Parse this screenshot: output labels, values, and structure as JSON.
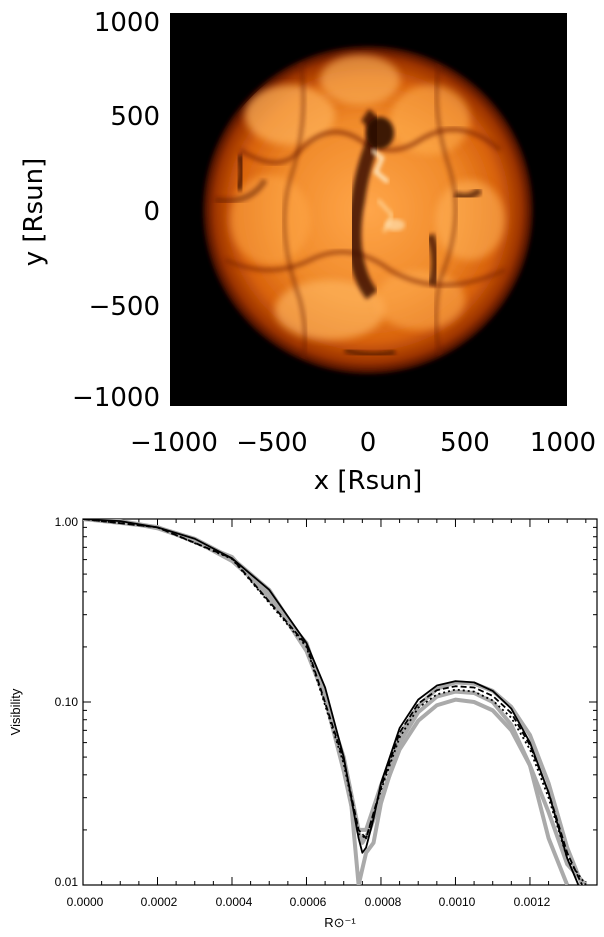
{
  "chart_data": [
    {
      "type": "heatmap",
      "xlabel": "x [Rsun]",
      "ylabel": "y [Rsun]",
      "xlim": [
        -1000,
        1000
      ],
      "ylim": [
        -1000,
        1000
      ],
      "xticks": [
        "−1000",
        "−500",
        "0",
        "500",
        "1000"
      ],
      "yticks": [
        "1000",
        "500",
        "0",
        "−500",
        "−1000"
      ],
      "colors": {
        "background": "#000000",
        "disk_bright": "#ffb347",
        "disk_mid": "#e06a10",
        "disk_dark": "#5a1500",
        "highlight": "#fff1d0"
      },
      "disk_radius": 830
    },
    {
      "type": "line",
      "xlabel": "R⊙⁻¹",
      "ylabel": "Visibility",
      "xlim": [
        0.0,
        0.00138
      ],
      "ylim": [
        0.01,
        1.0
      ],
      "yscale": "log",
      "xticks": [
        "0.0000",
        "0.0002",
        "0.0004",
        "0.0006",
        "0.0008",
        "0.0010",
        "0.0012"
      ],
      "yticks": [
        "1.00",
        "0.10",
        "0.01"
      ],
      "series": [
        {
          "color": "#aaaaaa",
          "dash": "",
          "x": [
            0.0,
            0.0001,
            0.0002,
            0.0003,
            0.0004,
            0.0005,
            0.0006,
            0.00065,
            0.0007,
            0.00072,
            0.00074,
            0.00076,
            0.00078,
            0.0008,
            0.00085,
            0.0009,
            0.00095,
            0.001,
            0.00105,
            0.0011,
            0.00115,
            0.0012,
            0.00125,
            0.0013
          ],
          "y": [
            1.0,
            0.975,
            0.9,
            0.78,
            0.61,
            0.41,
            0.2,
            0.11,
            0.045,
            0.028,
            0.01,
            0.015,
            0.017,
            0.028,
            0.06,
            0.088,
            0.107,
            0.114,
            0.112,
            0.1,
            0.075,
            0.045,
            0.018,
            0.01
          ]
        },
        {
          "color": "#aaaaaa",
          "dash": "",
          "x": [
            0.0,
            0.0001,
            0.0002,
            0.0003,
            0.0004,
            0.0005,
            0.0006,
            0.00065,
            0.0007,
            0.00073,
            0.00075,
            0.00077,
            0.0008,
            0.00085,
            0.0009,
            0.00095,
            0.001,
            0.00105,
            0.0011,
            0.00115,
            0.0012,
            0.00125,
            0.0013,
            0.00135
          ],
          "y": [
            1.0,
            0.972,
            0.89,
            0.76,
            0.59,
            0.39,
            0.19,
            0.105,
            0.042,
            0.022,
            0.017,
            0.02,
            0.03,
            0.055,
            0.079,
            0.096,
            0.103,
            0.1,
            0.09,
            0.07,
            0.045,
            0.025,
            0.013,
            0.01
          ]
        },
        {
          "color": "#aaaaaa",
          "dash": "",
          "x": [
            0.0,
            0.0002,
            0.0004,
            0.0006,
            0.0007,
            0.00074,
            0.00076,
            0.0008,
            0.00085,
            0.0009,
            0.00095,
            0.001,
            0.00105,
            0.0011,
            0.00115,
            0.0012,
            0.00125,
            0.0013,
            0.00134
          ],
          "y": [
            1.0,
            0.905,
            0.62,
            0.21,
            0.05,
            0.02,
            0.02,
            0.035,
            0.066,
            0.095,
            0.118,
            0.128,
            0.126,
            0.115,
            0.094,
            0.066,
            0.036,
            0.016,
            0.01
          ]
        },
        {
          "color": "#000000",
          "dash": "",
          "x": [
            0.0,
            0.0001,
            0.0002,
            0.0003,
            0.0004,
            0.0005,
            0.0006,
            0.00065,
            0.0007,
            0.00072,
            0.00074,
            0.00075,
            0.00076,
            0.00078,
            0.0008,
            0.00085,
            0.0009,
            0.00095,
            0.001,
            0.00105,
            0.0011,
            0.00115,
            0.0012,
            0.00125,
            0.0013,
            0.00133
          ],
          "y": [
            1.0,
            0.974,
            0.9,
            0.78,
            0.61,
            0.41,
            0.21,
            0.12,
            0.05,
            0.03,
            0.018,
            0.015,
            0.016,
            0.023,
            0.036,
            0.072,
            0.103,
            0.123,
            0.13,
            0.128,
            0.115,
            0.092,
            0.06,
            0.032,
            0.014,
            0.01
          ]
        },
        {
          "color": "#000000",
          "dash": "6 3",
          "x": [
            0.0,
            0.0002,
            0.0004,
            0.0006,
            0.0007,
            0.00074,
            0.00076,
            0.0008,
            0.00085,
            0.0009,
            0.00095,
            0.001,
            0.00105,
            0.0011,
            0.00115,
            0.0012,
            0.00125,
            0.0013,
            0.00134
          ],
          "y": [
            1.0,
            0.9,
            0.61,
            0.205,
            0.048,
            0.02,
            0.018,
            0.034,
            0.068,
            0.098,
            0.116,
            0.122,
            0.12,
            0.108,
            0.087,
            0.058,
            0.032,
            0.015,
            0.01
          ]
        },
        {
          "color": "#000000",
          "dash": "2 3",
          "x": [
            0.0,
            0.0002,
            0.0004,
            0.0006,
            0.0007,
            0.00074,
            0.00076,
            0.0008,
            0.00085,
            0.0009,
            0.00095,
            0.001,
            0.00105,
            0.0011,
            0.00115,
            0.0012,
            0.00125,
            0.0013,
            0.00135
          ],
          "y": [
            1.0,
            0.9,
            0.605,
            0.2,
            0.046,
            0.019,
            0.018,
            0.033,
            0.064,
            0.093,
            0.11,
            0.117,
            0.114,
            0.102,
            0.082,
            0.055,
            0.03,
            0.014,
            0.01
          ]
        }
      ]
    }
  ]
}
